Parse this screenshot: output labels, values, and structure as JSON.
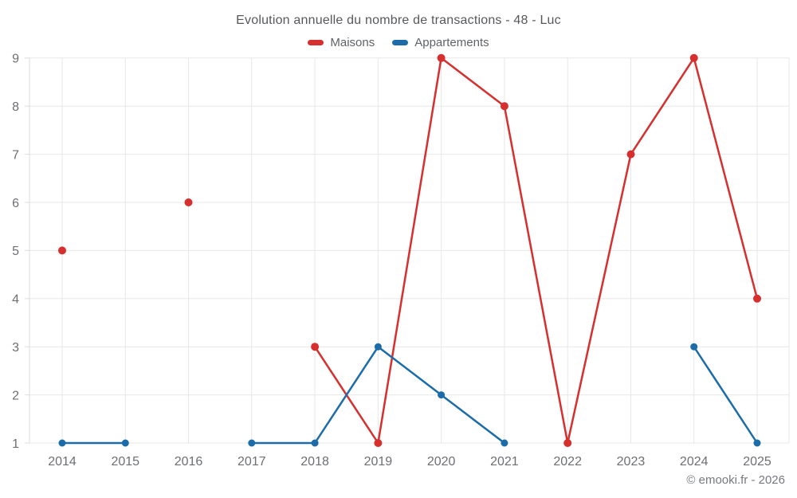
{
  "chart_data": {
    "type": "line",
    "title": "Evolution annuelle du nombre de transactions - 48 - Luc",
    "xlabel": "",
    "ylabel": "",
    "categories": [
      2014,
      2015,
      2016,
      2017,
      2018,
      2019,
      2020,
      2021,
      2022,
      2023,
      2024,
      2025
    ],
    "series": [
      {
        "name": "Maisons",
        "color": "#d62f2e",
        "values": [
          5,
          null,
          6,
          null,
          3,
          1,
          9,
          8,
          1,
          7,
          9,
          4
        ]
      },
      {
        "name": "Appartements",
        "color": "#1b6ca8",
        "values": [
          1,
          1,
          null,
          1,
          1,
          3,
          2,
          1,
          null,
          null,
          3,
          1
        ]
      }
    ],
    "ylim": [
      1,
      9
    ],
    "yticks": [
      1,
      2,
      3,
      4,
      5,
      6,
      7,
      8,
      9
    ],
    "grid": true,
    "legend_position": "top-center"
  },
  "footer": {
    "text": "© emooki.fr - 2026"
  },
  "colors": {
    "maisons": "#d62f2e",
    "appartements": "#1b6ca8",
    "gridline": "#e7e7e7",
    "axis_line": "#dcdcdc",
    "tick_label": "#6d6f73",
    "title_text": "#56585c",
    "background": "#ffffff"
  }
}
